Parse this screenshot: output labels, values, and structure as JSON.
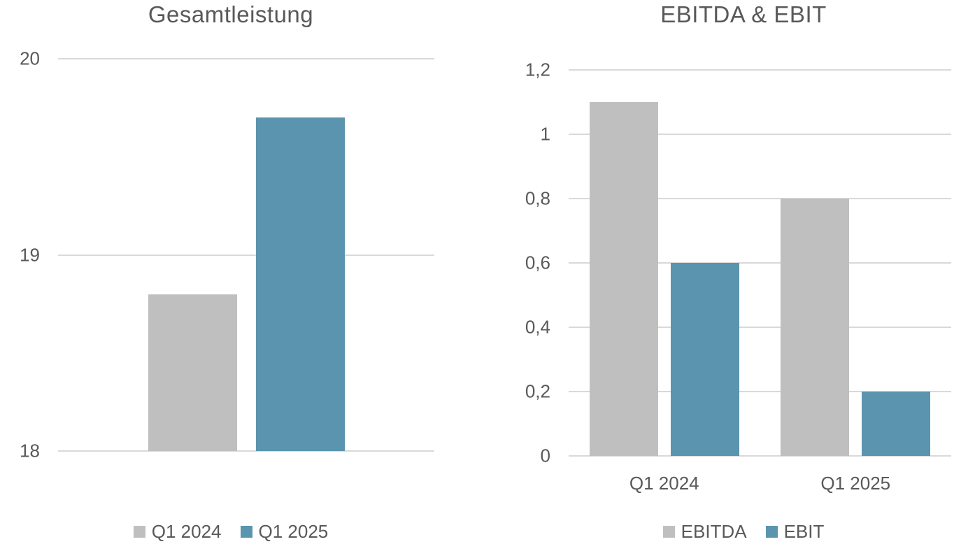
{
  "page": {
    "background": "#ffffff"
  },
  "palette": {
    "text_color": "#595959",
    "gridline_color": "#d9d9d9",
    "series_gray": "#bfbfbf",
    "series_blue": "#5b94ae"
  },
  "chart_data": [
    {
      "type": "bar",
      "title": "Gesamtleistung",
      "categories": [
        ""
      ],
      "series": [
        {
          "name": "Q1 2024",
          "values": [
            18.8
          ],
          "color": "#bfbfbf"
        },
        {
          "name": "Q1 2025",
          "values": [
            19.7
          ],
          "color": "#5b94ae"
        }
      ],
      "ylim": [
        18,
        20
      ],
      "yticks": [
        18,
        19,
        20
      ],
      "ytick_labels": [
        "18",
        "19",
        "20"
      ],
      "xlabel": "",
      "ylabel": "",
      "grid": true,
      "x_axis_labels_visible": false,
      "legend": [
        "Q1 2024",
        "Q1 2025"
      ],
      "legend_position": "bottom"
    },
    {
      "type": "bar",
      "title": "EBITDA & EBIT",
      "categories": [
        "Q1 2024",
        "Q1 2025"
      ],
      "series": [
        {
          "name": "EBITDA",
          "values": [
            1.1,
            0.8
          ],
          "color": "#bfbfbf"
        },
        {
          "name": "EBIT",
          "values": [
            0.6,
            0.2
          ],
          "color": "#5b94ae"
        }
      ],
      "ylim": [
        0,
        1.2
      ],
      "yticks": [
        0,
        0.2,
        0.4,
        0.6,
        0.8,
        1,
        1.2
      ],
      "ytick_labels": [
        "0",
        "0,2",
        "0,4",
        "0,6",
        "0,8",
        "1",
        "1,2"
      ],
      "xlabel": "",
      "ylabel": "",
      "grid": true,
      "x_axis_labels_visible": true,
      "legend": [
        "EBITDA",
        "EBIT"
      ],
      "legend_position": "bottom"
    }
  ]
}
